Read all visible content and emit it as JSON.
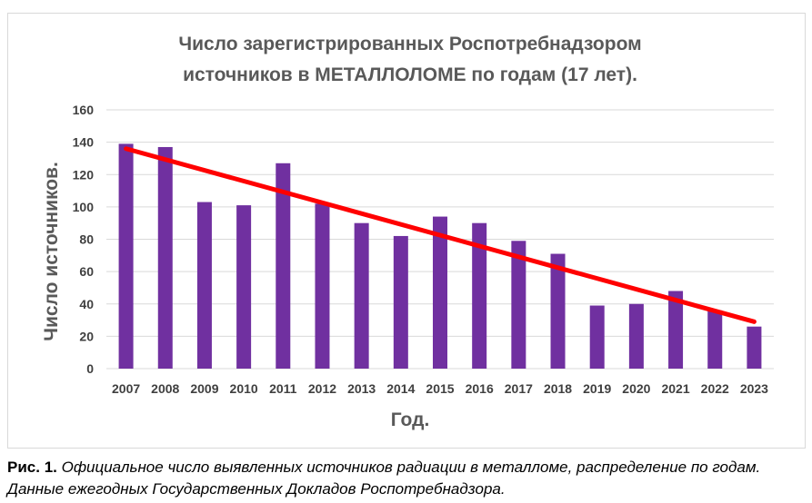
{
  "chart_data": {
    "type": "bar",
    "title_lines": [
      "Число зарегистрированных Роспотребнадзором",
      "источников в МЕТАЛЛОЛОМЕ по годам (17 лет)."
    ],
    "xlabel": "Год.",
    "ylabel": "Число источников.",
    "categories": [
      "2007",
      "2008",
      "2009",
      "2010",
      "2011",
      "2012",
      "2013",
      "2014",
      "2015",
      "2016",
      "2017",
      "2018",
      "2019",
      "2020",
      "2021",
      "2022",
      "2023"
    ],
    "values": [
      139,
      137,
      103,
      101,
      127,
      102,
      90,
      82,
      94,
      90,
      79,
      71,
      39,
      40,
      48,
      36,
      26
    ],
    "ylim": [
      0,
      160
    ],
    "yticks": [
      0,
      20,
      40,
      60,
      80,
      100,
      120,
      140,
      160
    ],
    "grid": true,
    "legend": "none",
    "trendline": {
      "type": "linear",
      "start": 136,
      "end": 29
    },
    "colors": {
      "bar": "#7030a0",
      "trend": "#ff0000",
      "grid": "#d9d9d9"
    }
  },
  "caption": {
    "label": "Рис. 1.",
    "text": "Официальное число выявленных источников радиации в металломе, распределение по годам. Данные ежегодных Государственных Докладов Роспотребнадзора."
  }
}
